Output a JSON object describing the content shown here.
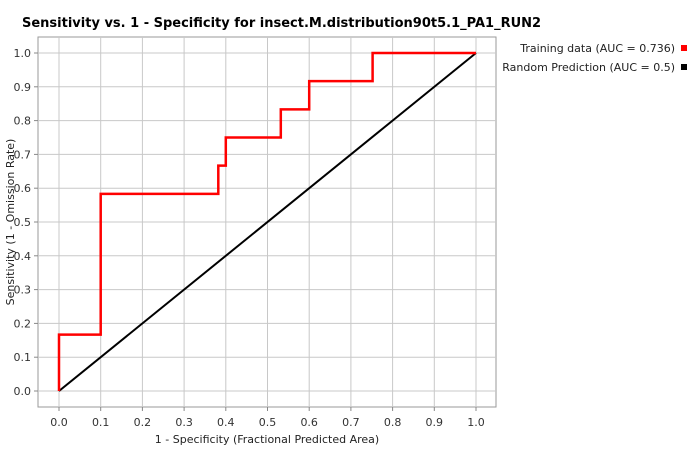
{
  "chart_data": {
    "type": "line",
    "title": "Sensitivity vs. 1 - Specificity for insect.M.distribution90t5.1_PA1_RUN2",
    "xlabel": "1 - Specificity  (Fractional Predicted Area)",
    "ylabel": "Sensitivity  (1 - Omission Rate)",
    "xlim": [
      0,
      1
    ],
    "ylim": [
      0,
      1
    ],
    "x_ticks": [
      "0.0",
      "0.1",
      "0.2",
      "0.3",
      "0.4",
      "0.5",
      "0.6",
      "0.7",
      "0.8",
      "0.9",
      "1.0"
    ],
    "y_ticks": [
      "0.0",
      "0.1",
      "0.2",
      "0.3",
      "0.4",
      "0.5",
      "0.6",
      "0.7",
      "0.8",
      "0.9",
      "1.0"
    ],
    "grid": true,
    "legend_position": "right",
    "series": [
      {
        "name": "Training data (AUC = 0.736)",
        "color": "#ff0000",
        "points": [
          [
            0.0,
            0.0
          ],
          [
            0.0,
            0.167
          ],
          [
            0.1,
            0.167
          ],
          [
            0.1,
            0.583
          ],
          [
            0.382,
            0.583
          ],
          [
            0.382,
            0.667
          ],
          [
            0.4,
            0.667
          ],
          [
            0.4,
            0.75
          ],
          [
            0.532,
            0.75
          ],
          [
            0.532,
            0.833
          ],
          [
            0.6,
            0.833
          ],
          [
            0.6,
            0.917
          ],
          [
            0.752,
            0.917
          ],
          [
            0.752,
            1.0
          ],
          [
            1.0,
            1.0
          ]
        ]
      },
      {
        "name": "Random Prediction (AUC = 0.5)",
        "color": "#000000",
        "points": [
          [
            0.0,
            0.0
          ],
          [
            1.0,
            1.0
          ]
        ]
      }
    ]
  }
}
